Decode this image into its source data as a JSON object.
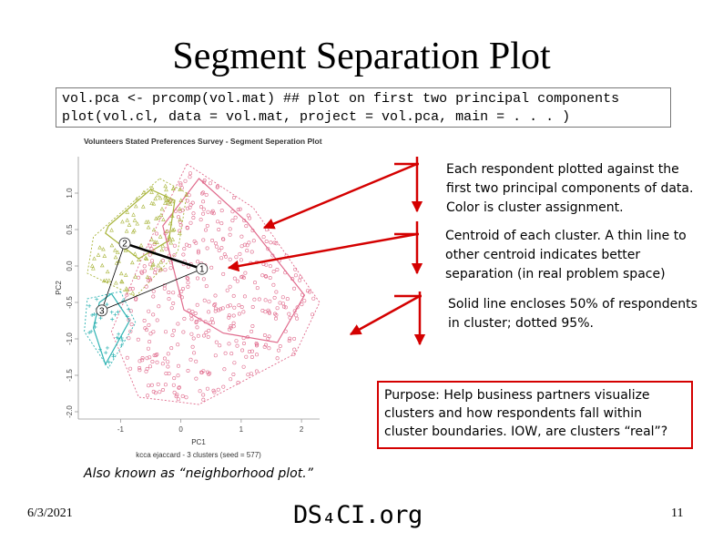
{
  "slide": {
    "title": "Segment Separation Plot",
    "code_line1": "vol.pca <- prcomp(vol.mat) ## plot on first two principal components",
    "code_line2": "plot(vol.cl, data = vol.mat, project = vol.pca, main = . . . )",
    "annotations": [
      "Each respondent plotted against the first two principal components of data. Color is cluster assignment.",
      "Centroid of each cluster. A thin line to other centroid indicates better separation (in real problem space)",
      "Solid line encloses 50% of respondents in cluster; dotted 95%."
    ],
    "purpose": "Purpose: Help business partners visualize clusters and how respondents fall within cluster boundaries. IOW, are clusters “real”?",
    "aka": "Also known as “neighborhood plot.”",
    "date": "6/3/2021",
    "brand": "DS₄CI.org",
    "page_number": "11",
    "colors": {
      "arrow": "#d40000",
      "cluster1": "#e06a8c",
      "cluster2": "#a8b43a",
      "cluster3": "#2fb3b3"
    }
  },
  "chart_data": {
    "type": "scatter",
    "title": "Volunteers Stated Preferences Survey - Segment Seperation Plot",
    "xlabel": "PC1",
    "ylabel": "PC2",
    "subtitle": "kcca ejaccard - 3 clusters (seed = 577)",
    "x_ticks": [
      "-1",
      "0",
      "1",
      "2"
    ],
    "y_ticks": [
      "1.0",
      "0.5",
      "0.0",
      "-0.5",
      "-1.0",
      "-1.5",
      "-2.0"
    ],
    "xlim": [
      -1.7,
      2.3
    ],
    "ylim": [
      -2.1,
      1.5
    ],
    "grid": false,
    "centroids": [
      {
        "label": "1",
        "x": 0.35,
        "y": -0.04
      },
      {
        "label": "2",
        "x": -0.93,
        "y": 0.31
      },
      {
        "label": "3",
        "x": -1.31,
        "y": -0.61
      }
    ],
    "centroid_links": [
      [
        "2",
        "1",
        "thick"
      ],
      [
        "3",
        "1",
        "thin"
      ],
      [
        "2",
        "3",
        "thin"
      ]
    ],
    "series": [
      {
        "name": "1",
        "color": "#e06a8c",
        "point_count": 420,
        "x_range": [
          -0.9,
          2.2
        ],
        "y_range": [
          -2.0,
          1.4
        ],
        "hull50": [
          [
            0.3,
            1.2
          ],
          [
            1.1,
            0.6
          ],
          [
            2.05,
            -0.4
          ],
          [
            1.6,
            -1.05
          ],
          [
            0.7,
            -0.92
          ],
          [
            0.05,
            -0.6
          ],
          [
            -0.3,
            0.55
          ]
        ],
        "hull95": [
          [
            0.1,
            1.4
          ],
          [
            1.2,
            0.8
          ],
          [
            2.3,
            -0.5
          ],
          [
            1.9,
            -1.2
          ],
          [
            0.3,
            -1.9
          ],
          [
            -0.7,
            -1.8
          ],
          [
            -1.15,
            -0.9
          ],
          [
            -0.6,
            0.2
          ]
        ]
      },
      {
        "name": "2",
        "color": "#a8b43a",
        "point_count": 110,
        "x_range": [
          -1.5,
          0.1
        ],
        "y_range": [
          -0.5,
          1.15
        ],
        "hull50": [
          [
            -0.5,
            1.05
          ],
          [
            -0.1,
            0.9
          ],
          [
            -0.2,
            0.35
          ],
          [
            -0.7,
            0.1
          ],
          [
            -1.25,
            0.45
          ],
          [
            -1.2,
            0.55
          ]
        ],
        "hull95": [
          [
            -0.35,
            1.2
          ],
          [
            0.1,
            1.0
          ],
          [
            -0.05,
            0.2
          ],
          [
            -0.75,
            -0.42
          ],
          [
            -1.55,
            -0.1
          ],
          [
            -1.45,
            0.4
          ]
        ]
      },
      {
        "name": "3",
        "color": "#2fb3b3",
        "point_count": 30,
        "x_range": [
          -1.65,
          -0.8
        ],
        "y_range": [
          -1.4,
          -0.35
        ],
        "hull50": [
          [
            -1.15,
            -0.38
          ],
          [
            -0.85,
            -0.75
          ],
          [
            -1.25,
            -1.35
          ],
          [
            -1.45,
            -0.85
          ],
          [
            -1.35,
            -0.5
          ]
        ],
        "hull95": [
          [
            -1.0,
            -0.35
          ],
          [
            -0.75,
            -0.78
          ],
          [
            -1.2,
            -1.4
          ],
          [
            -1.6,
            -0.9
          ],
          [
            -1.55,
            -0.45
          ]
        ]
      }
    ]
  }
}
